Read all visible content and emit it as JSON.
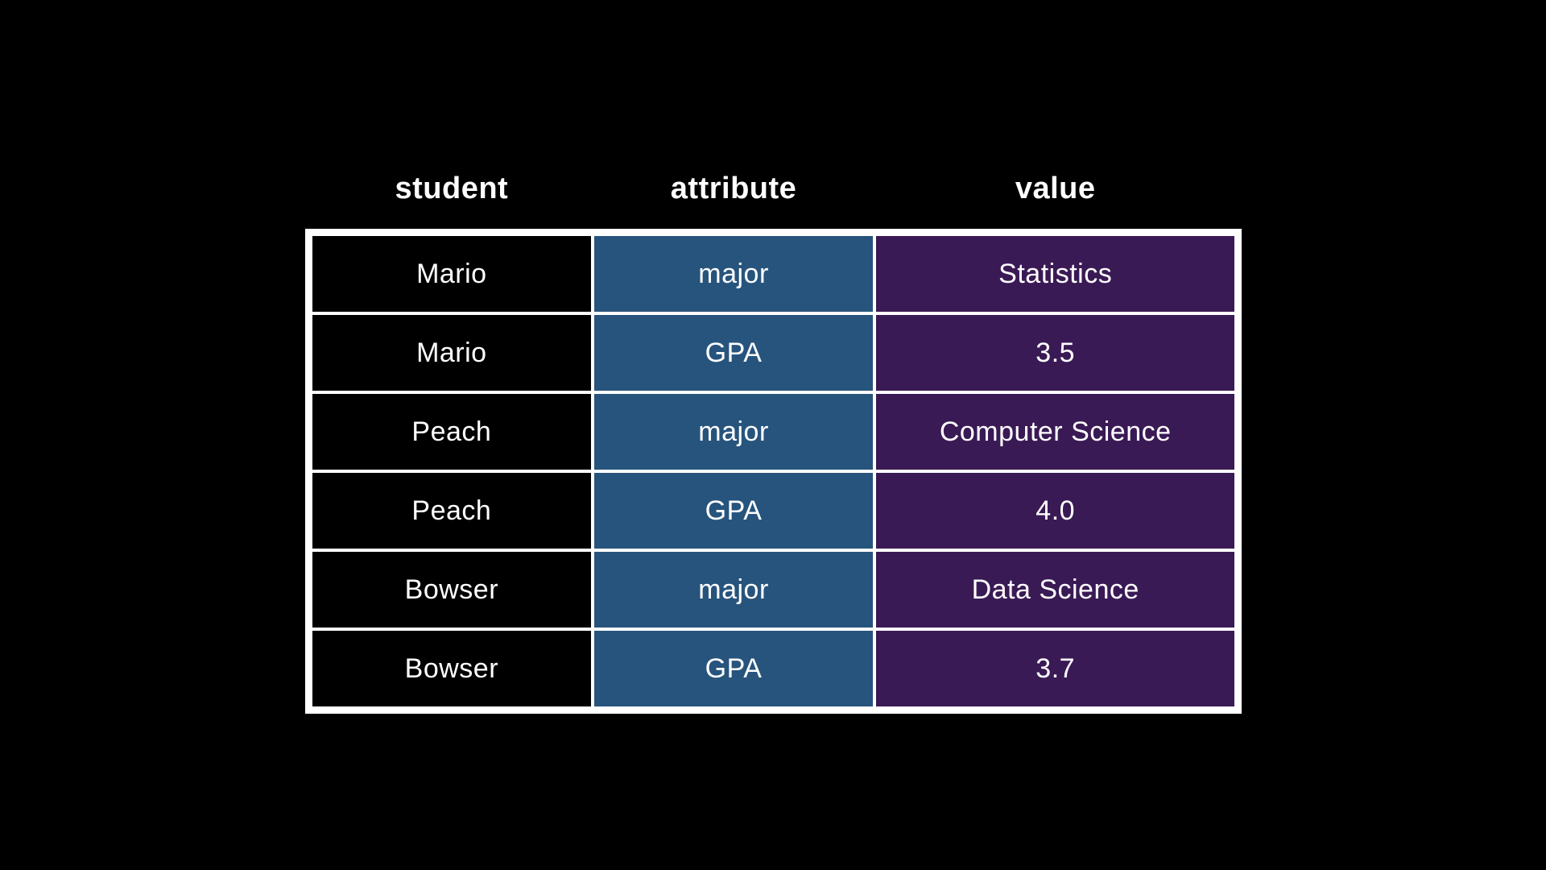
{
  "page": {
    "background": "#000000"
  },
  "colors": {
    "student_column_bg": "#000000",
    "attribute_column_bg": "#27547D",
    "value_column_bg": "#3A1A55",
    "grid_line": "#FFFFFF",
    "text": "#FFFFFF"
  },
  "chart_data": {
    "type": "table",
    "title": "",
    "columns": [
      "student",
      "attribute",
      "value"
    ],
    "rows": [
      [
        "Mario",
        "major",
        "Statistics"
      ],
      [
        "Mario",
        "GPA",
        "3.5"
      ],
      [
        "Peach",
        "major",
        "Computer Science"
      ],
      [
        "Peach",
        "GPA",
        "4.0"
      ],
      [
        "Bowser",
        "major",
        "Data Science"
      ],
      [
        "Bowser",
        "GPA",
        "3.7"
      ]
    ]
  }
}
